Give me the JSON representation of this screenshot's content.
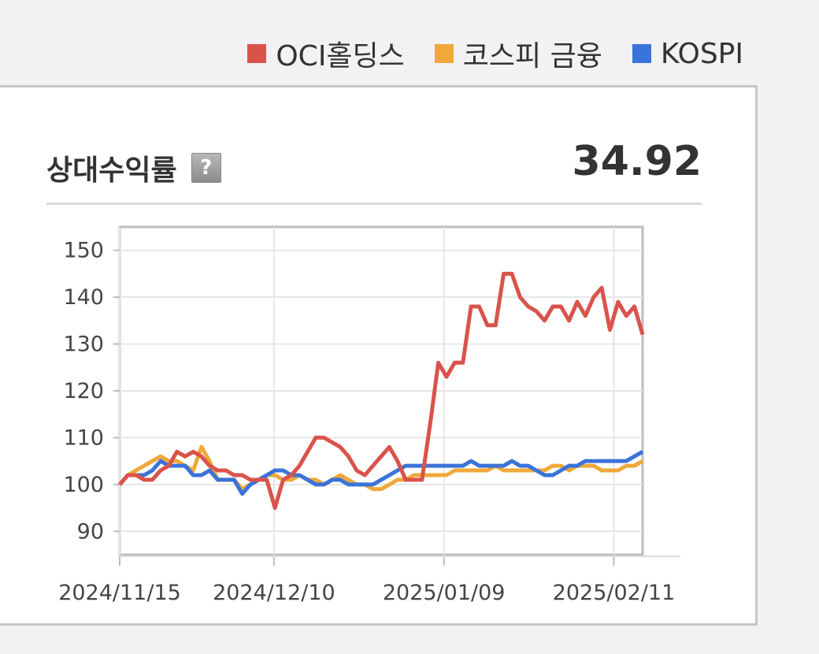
{
  "legend": {
    "items": [
      {
        "label": "OCI홀딩스",
        "color": "#d9534a"
      },
      {
        "label": "코스피 금융",
        "color": "#f0a83a"
      },
      {
        "label": "KOSPI",
        "color": "#3a73d9"
      }
    ]
  },
  "panel": {
    "title": "상대수익률",
    "help_icon": "help-icon",
    "value": "34.92"
  },
  "chart_data": {
    "type": "line",
    "x_tick_labels": [
      "2024/11/15",
      "2024/12/10",
      "2025/01/09",
      "2025/02/11"
    ],
    "y_ticks": [
      90,
      100,
      110,
      120,
      130,
      140,
      150
    ],
    "ylim": [
      85,
      155
    ],
    "grid": true,
    "series": [
      {
        "name": "OCI홀딩스",
        "color": "#d9534a",
        "values": [
          100,
          102,
          102,
          101,
          101,
          103,
          104,
          107,
          106,
          107,
          106,
          104,
          103,
          103,
          102,
          102,
          101,
          101,
          101,
          95,
          101,
          102,
          104,
          107,
          110,
          110,
          109,
          108,
          106,
          103,
          102,
          104,
          106,
          108,
          105,
          101,
          101,
          101,
          113,
          126,
          123,
          126,
          126,
          138,
          138,
          134,
          134,
          145,
          145,
          140,
          138,
          137,
          135,
          138,
          138,
          135,
          139,
          136,
          140,
          142,
          133,
          139,
          136,
          138,
          132
        ]
      },
      {
        "name": "코스피 금융",
        "color": "#f0a83a",
        "values": [
          100,
          102,
          103,
          104,
          105,
          106,
          105,
          105,
          104,
          103,
          108,
          105,
          101,
          101,
          101,
          99,
          100,
          101,
          102,
          102,
          101,
          101,
          102,
          101,
          101,
          100,
          101,
          102,
          101,
          100,
          100,
          99,
          99,
          100,
          101,
          101,
          102,
          102,
          102,
          102,
          102,
          103,
          103,
          103,
          103,
          103,
          104,
          103,
          103,
          103,
          103,
          103,
          103,
          104,
          104,
          103,
          104,
          104,
          104,
          103,
          103,
          103,
          104,
          104,
          105
        ]
      },
      {
        "name": "KOSPI",
        "color": "#3a73d9",
        "values": [
          100,
          102,
          102,
          102,
          103,
          105,
          104,
          104,
          104,
          102,
          102,
          103,
          101,
          101,
          101,
          98,
          100,
          101,
          102,
          103,
          103,
          102,
          102,
          101,
          100,
          100,
          101,
          101,
          100,
          100,
          100,
          100,
          101,
          102,
          103,
          104,
          104,
          104,
          104,
          104,
          104,
          104,
          104,
          105,
          104,
          104,
          104,
          104,
          105,
          104,
          104,
          103,
          102,
          102,
          103,
          104,
          104,
          105,
          105,
          105,
          105,
          105,
          105,
          106,
          107
        ]
      }
    ]
  }
}
